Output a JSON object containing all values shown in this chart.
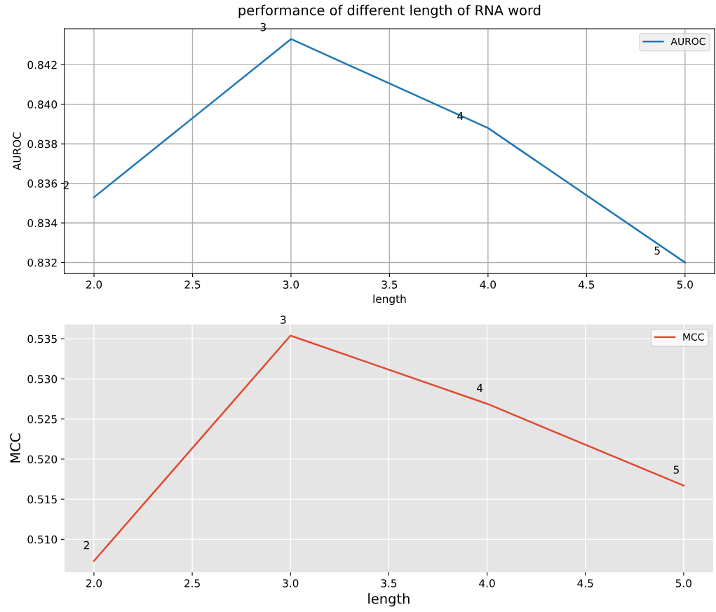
{
  "chart_data": [
    {
      "type": "line",
      "title": "performance of different length of RNA word",
      "xlabel": "length",
      "ylabel": "AUROC",
      "x": [
        2,
        3,
        4,
        5
      ],
      "series": [
        {
          "name": "AUROC",
          "color": "#1f77b4",
          "values": [
            0.8353,
            0.8433,
            0.8388,
            0.832
          ]
        }
      ],
      "xlim": [
        1.85,
        5.15
      ],
      "xticks": [
        {
          "value": 2,
          "label": "2.0"
        },
        {
          "value": 2.5,
          "label": "2.5"
        },
        {
          "value": 3,
          "label": "3.0"
        },
        {
          "value": 3.5,
          "label": "3.5"
        },
        {
          "value": 4,
          "label": "4.0"
        },
        {
          "value": 4.5,
          "label": "4.5"
        },
        {
          "value": 5,
          "label": "5.0"
        }
      ],
      "ylim": [
        0.83144,
        0.84382
      ],
      "yticks": [
        {
          "value": 0.832,
          "label": "0.832"
        },
        {
          "value": 0.834,
          "label": "0.834"
        },
        {
          "value": 0.836,
          "label": "0.836"
        },
        {
          "value": 0.838,
          "label": "0.838"
        },
        {
          "value": 0.84,
          "label": "0.840"
        },
        {
          "value": 0.842,
          "label": "0.842"
        }
      ],
      "grid": true,
      "legend": "top right",
      "annotations": [
        {
          "text": "2",
          "x": 2,
          "y": 0.8353
        },
        {
          "text": "3",
          "x": 3,
          "y": 0.8433
        },
        {
          "text": "4",
          "x": 4,
          "y": 0.8388
        },
        {
          "text": "5",
          "x": 5,
          "y": 0.832
        }
      ]
    },
    {
      "type": "line",
      "xlabel": "length",
      "ylabel": "MCC",
      "x": [
        2,
        3,
        4,
        5
      ],
      "series": [
        {
          "name": "MCC",
          "color": "#e24a33",
          "values": [
            0.5073,
            0.5354,
            0.5269,
            0.5167
          ]
        }
      ],
      "xlim": [
        1.85,
        5.15
      ],
      "xticks": [
        {
          "value": 2,
          "label": "2.0"
        },
        {
          "value": 2.5,
          "label": "2.5"
        },
        {
          "value": 3,
          "label": "3.0"
        },
        {
          "value": 3.5,
          "label": "3.5"
        },
        {
          "value": 4,
          "label": "4.0"
        },
        {
          "value": 4.5,
          "label": "4.5"
        },
        {
          "value": 5,
          "label": "5.0"
        }
      ],
      "ylim": [
        0.5059,
        0.5368
      ],
      "yticks": [
        {
          "value": 0.51,
          "label": "0.510"
        },
        {
          "value": 0.515,
          "label": "0.515"
        },
        {
          "value": 0.52,
          "label": "0.520"
        },
        {
          "value": 0.525,
          "label": "0.525"
        },
        {
          "value": 0.53,
          "label": "0.530"
        },
        {
          "value": 0.535,
          "label": "0.535"
        }
      ],
      "grid": true,
      "legend": "top right",
      "annotations": [
        {
          "text": "2",
          "x": 2,
          "y": 0.5073
        },
        {
          "text": "3",
          "x": 3,
          "y": 0.5354
        },
        {
          "text": "4",
          "x": 4,
          "y": 0.5269
        },
        {
          "text": "5",
          "x": 5,
          "y": 0.5167
        }
      ]
    }
  ]
}
